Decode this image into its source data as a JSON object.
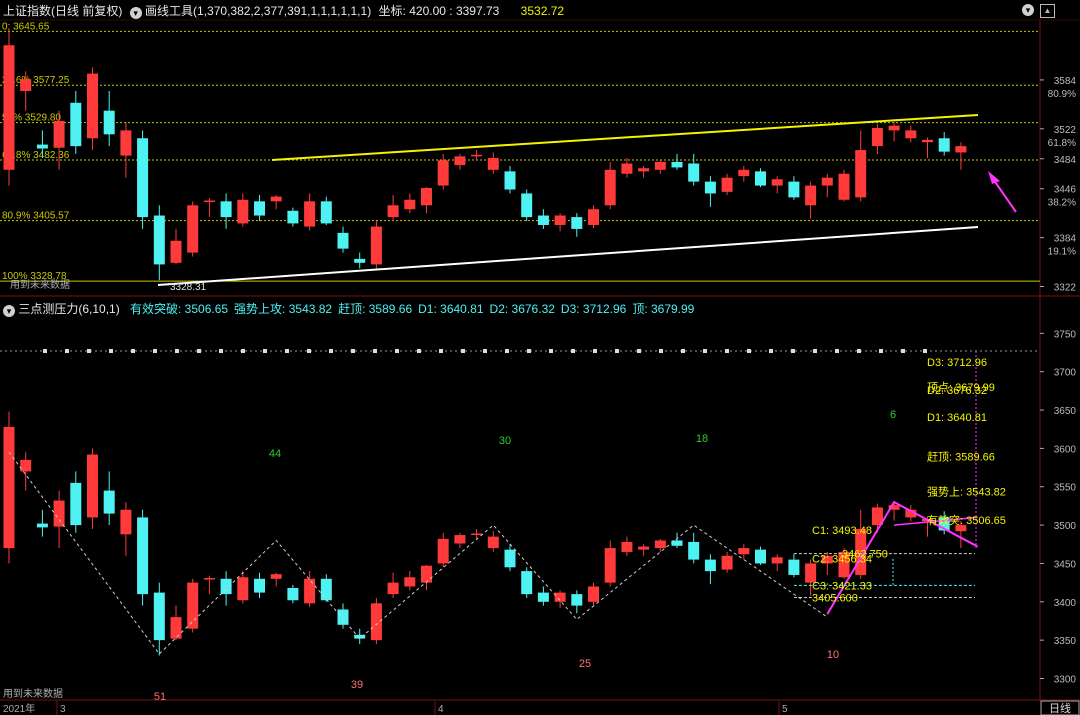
{
  "header": {
    "index_name": "上证指数",
    "mode": "(日线 前复权)",
    "tool_label": "画线工具",
    "tool_params": "(1,370,382,2,377,391,1,1,1,1,1,1)",
    "coord_label": "坐标:",
    "coord_value": "420.00 : 3397.73",
    "price": "3532.72"
  },
  "upper": {
    "fib": [
      {
        "label": "0: 3645.65",
        "price": 3645.65
      },
      {
        "label": "23.6% 3577.25",
        "price": 3577.25
      },
      {
        "label": "50% 3529.80",
        "price": 3529.8
      },
      {
        "label": "61.8% 3482.36",
        "price": 3482.36
      },
      {
        "label": "80.9% 3405.57",
        "price": 3405.57
      },
      {
        "label": "100% 3328.78",
        "price": 3328.78
      }
    ],
    "low_mark": "3328.31",
    "future_note": "用到未来数据",
    "right_ticks": [
      {
        "price": 3584,
        "label": "3584",
        "pct": "80.9%"
      },
      {
        "price": 3522,
        "label": "3522",
        "pct": "61.8%"
      },
      {
        "price": 3484,
        "label": "3484",
        "pct": ""
      },
      {
        "price": 3446,
        "label": "3446",
        "pct": "38.2%"
      },
      {
        "price": 3384,
        "label": "3384",
        "pct": "19.1%"
      },
      {
        "price": 3322,
        "label": "3322",
        "pct": ""
      }
    ]
  },
  "lower": {
    "title": "三点测压力",
    "params": "(6,10,1)",
    "stats": [
      {
        "label": "有效突破:",
        "value": "3506.65"
      },
      {
        "label": "强势上攻:",
        "value": "3543.82"
      },
      {
        "label": "赶顶:",
        "value": "3589.66"
      },
      {
        "label": "D1:",
        "value": "3640.81"
      },
      {
        "label": "D2:",
        "value": "3676.32"
      },
      {
        "label": "D3:",
        "value": "3712.96"
      },
      {
        "label": "顶:",
        "value": "3679.99"
      }
    ],
    "right_ticks": [
      "3750",
      "3700",
      "3650",
      "3600",
      "3550",
      "3500",
      "3450",
      "3400",
      "3350",
      "3300"
    ],
    "counts": [
      {
        "text": "44",
        "color": "green"
      },
      {
        "text": "30",
        "color": "green"
      },
      {
        "text": "18",
        "color": "green"
      },
      {
        "text": "6",
        "color": "green"
      },
      {
        "text": "51",
        "color": "red"
      },
      {
        "text": "39",
        "color": "red"
      },
      {
        "text": "25",
        "color": "red"
      },
      {
        "text": "10",
        "color": "red"
      }
    ],
    "right_labels": [
      {
        "text": "D3: 3712.96",
        "price": 3712.96
      },
      {
        "text": "顶点: 3679.99",
        "price": 3679.99
      },
      {
        "text": "D2: 3676.32",
        "price": 3676.32
      },
      {
        "text": "D1: 3640.81",
        "price": 3640.81
      },
      {
        "text": "赶顶: 3589.66",
        "price": 3589.66
      },
      {
        "text": "强势上: 3543.82",
        "price": 3543.82
      },
      {
        "text": "有效突: 3506.65",
        "price": 3506.65
      }
    ],
    "mid_labels": [
      {
        "text": "C1: 3493.48",
        "price": 3493.48
      },
      {
        "text": "3462.750",
        "price": 3462.75
      },
      {
        "text": "C2: 3456.34",
        "price": 3456.34
      },
      {
        "text": "C3: 3421.33",
        "price": 3421.33
      },
      {
        "text": "3405.600",
        "price": 3405.6
      }
    ],
    "future_note": "用到未来数据"
  },
  "axis": {
    "year": "2021年",
    "months": [
      "3",
      "4",
      "5"
    ],
    "period": "日线"
  },
  "colors": {
    "up": "#ff3a3a",
    "down": "#4ef2f2",
    "fib": "#c8c800",
    "yellow": "#f4f400",
    "white": "#ffffff",
    "magenta": "#ff33ff",
    "green_num": "#2ecc2e",
    "red_num": "#ff7070"
  },
  "chart_data": {
    "type": "candlestick",
    "candles": [
      {
        "o": 3470,
        "h": 3648,
        "l": 3450,
        "c": 3628
      },
      {
        "o": 3570,
        "h": 3595,
        "l": 3545,
        "c": 3585
      },
      {
        "o": 3502,
        "h": 3520,
        "l": 3485,
        "c": 3497
      },
      {
        "o": 3498,
        "h": 3545,
        "l": 3470,
        "c": 3532
      },
      {
        "o": 3555,
        "h": 3570,
        "l": 3490,
        "c": 3500
      },
      {
        "o": 3510,
        "h": 3600,
        "l": 3495,
        "c": 3592
      },
      {
        "o": 3545,
        "h": 3570,
        "l": 3500,
        "c": 3515
      },
      {
        "o": 3488,
        "h": 3530,
        "l": 3460,
        "c": 3520
      },
      {
        "o": 3510,
        "h": 3520,
        "l": 3395,
        "c": 3410
      },
      {
        "o": 3412,
        "h": 3425,
        "l": 3330,
        "c": 3350
      },
      {
        "o": 3352,
        "h": 3395,
        "l": 3350,
        "c": 3380
      },
      {
        "o": 3365,
        "h": 3430,
        "l": 3360,
        "c": 3425
      },
      {
        "o": 3430,
        "h": 3434,
        "l": 3410,
        "c": 3431
      },
      {
        "o": 3430,
        "h": 3440,
        "l": 3395,
        "c": 3410
      },
      {
        "o": 3402,
        "h": 3440,
        "l": 3398,
        "c": 3432
      },
      {
        "o": 3430,
        "h": 3438,
        "l": 3405,
        "c": 3412
      },
      {
        "o": 3430,
        "h": 3438,
        "l": 3420,
        "c": 3436
      },
      {
        "o": 3418,
        "h": 3422,
        "l": 3398,
        "c": 3402
      },
      {
        "o": 3398,
        "h": 3440,
        "l": 3393,
        "c": 3430
      },
      {
        "o": 3430,
        "h": 3436,
        "l": 3400,
        "c": 3402
      },
      {
        "o": 3390,
        "h": 3398,
        "l": 3365,
        "c": 3370
      },
      {
        "o": 3357,
        "h": 3365,
        "l": 3345,
        "c": 3352
      },
      {
        "o": 3350,
        "h": 3405,
        "l": 3345,
        "c": 3398
      },
      {
        "o": 3410,
        "h": 3438,
        "l": 3405,
        "c": 3425
      },
      {
        "o": 3420,
        "h": 3440,
        "l": 3415,
        "c": 3432
      },
      {
        "o": 3425,
        "h": 3448,
        "l": 3415,
        "c": 3447
      },
      {
        "o": 3450,
        "h": 3490,
        "l": 3445,
        "c": 3482
      },
      {
        "o": 3476,
        "h": 3490,
        "l": 3470,
        "c": 3487
      },
      {
        "o": 3489,
        "h": 3495,
        "l": 3482,
        "c": 3489
      },
      {
        "o": 3470,
        "h": 3492,
        "l": 3465,
        "c": 3485
      },
      {
        "o": 3468,
        "h": 3475,
        "l": 3440,
        "c": 3445
      },
      {
        "o": 3440,
        "h": 3445,
        "l": 3405,
        "c": 3410
      },
      {
        "o": 3412,
        "h": 3420,
        "l": 3395,
        "c": 3400
      },
      {
        "o": 3400,
        "h": 3415,
        "l": 3392,
        "c": 3412
      },
      {
        "o": 3410,
        "h": 3415,
        "l": 3385,
        "c": 3395
      },
      {
        "o": 3400,
        "h": 3425,
        "l": 3396,
        "c": 3420
      },
      {
        "o": 3425,
        "h": 3480,
        "l": 3420,
        "c": 3470
      },
      {
        "o": 3465,
        "h": 3485,
        "l": 3460,
        "c": 3478
      },
      {
        "o": 3468,
        "h": 3475,
        "l": 3460,
        "c": 3472
      },
      {
        "o": 3470,
        "h": 3482,
        "l": 3465,
        "c": 3480
      },
      {
        "o": 3480,
        "h": 3490,
        "l": 3470,
        "c": 3473
      },
      {
        "o": 3478,
        "h": 3490,
        "l": 3450,
        "c": 3455
      },
      {
        "o": 3455,
        "h": 3462,
        "l": 3423,
        "c": 3440
      },
      {
        "o": 3442,
        "h": 3465,
        "l": 3438,
        "c": 3460
      },
      {
        "o": 3462,
        "h": 3475,
        "l": 3455,
        "c": 3470
      },
      {
        "o": 3468,
        "h": 3472,
        "l": 3448,
        "c": 3450
      },
      {
        "o": 3450,
        "h": 3462,
        "l": 3440,
        "c": 3458
      },
      {
        "o": 3455,
        "h": 3462,
        "l": 3432,
        "c": 3435
      },
      {
        "o": 3425,
        "h": 3455,
        "l": 3408,
        "c": 3450
      },
      {
        "o": 3450,
        "h": 3465,
        "l": 3435,
        "c": 3460
      },
      {
        "o": 3432,
        "h": 3470,
        "l": 3430,
        "c": 3465
      },
      {
        "o": 3435,
        "h": 3520,
        "l": 3430,
        "c": 3495
      },
      {
        "o": 3500,
        "h": 3528,
        "l": 3490,
        "c": 3523
      },
      {
        "o": 3520,
        "h": 3531,
        "l": 3506,
        "c": 3526
      },
      {
        "o": 3510,
        "h": 3526,
        "l": 3505,
        "c": 3520
      },
      {
        "o": 3505,
        "h": 3511,
        "l": 3485,
        "c": 3508
      },
      {
        "o": 3510,
        "h": 3518,
        "l": 3488,
        "c": 3493
      },
      {
        "o": 3492,
        "h": 3505,
        "l": 3470,
        "c": 3500
      }
    ]
  }
}
